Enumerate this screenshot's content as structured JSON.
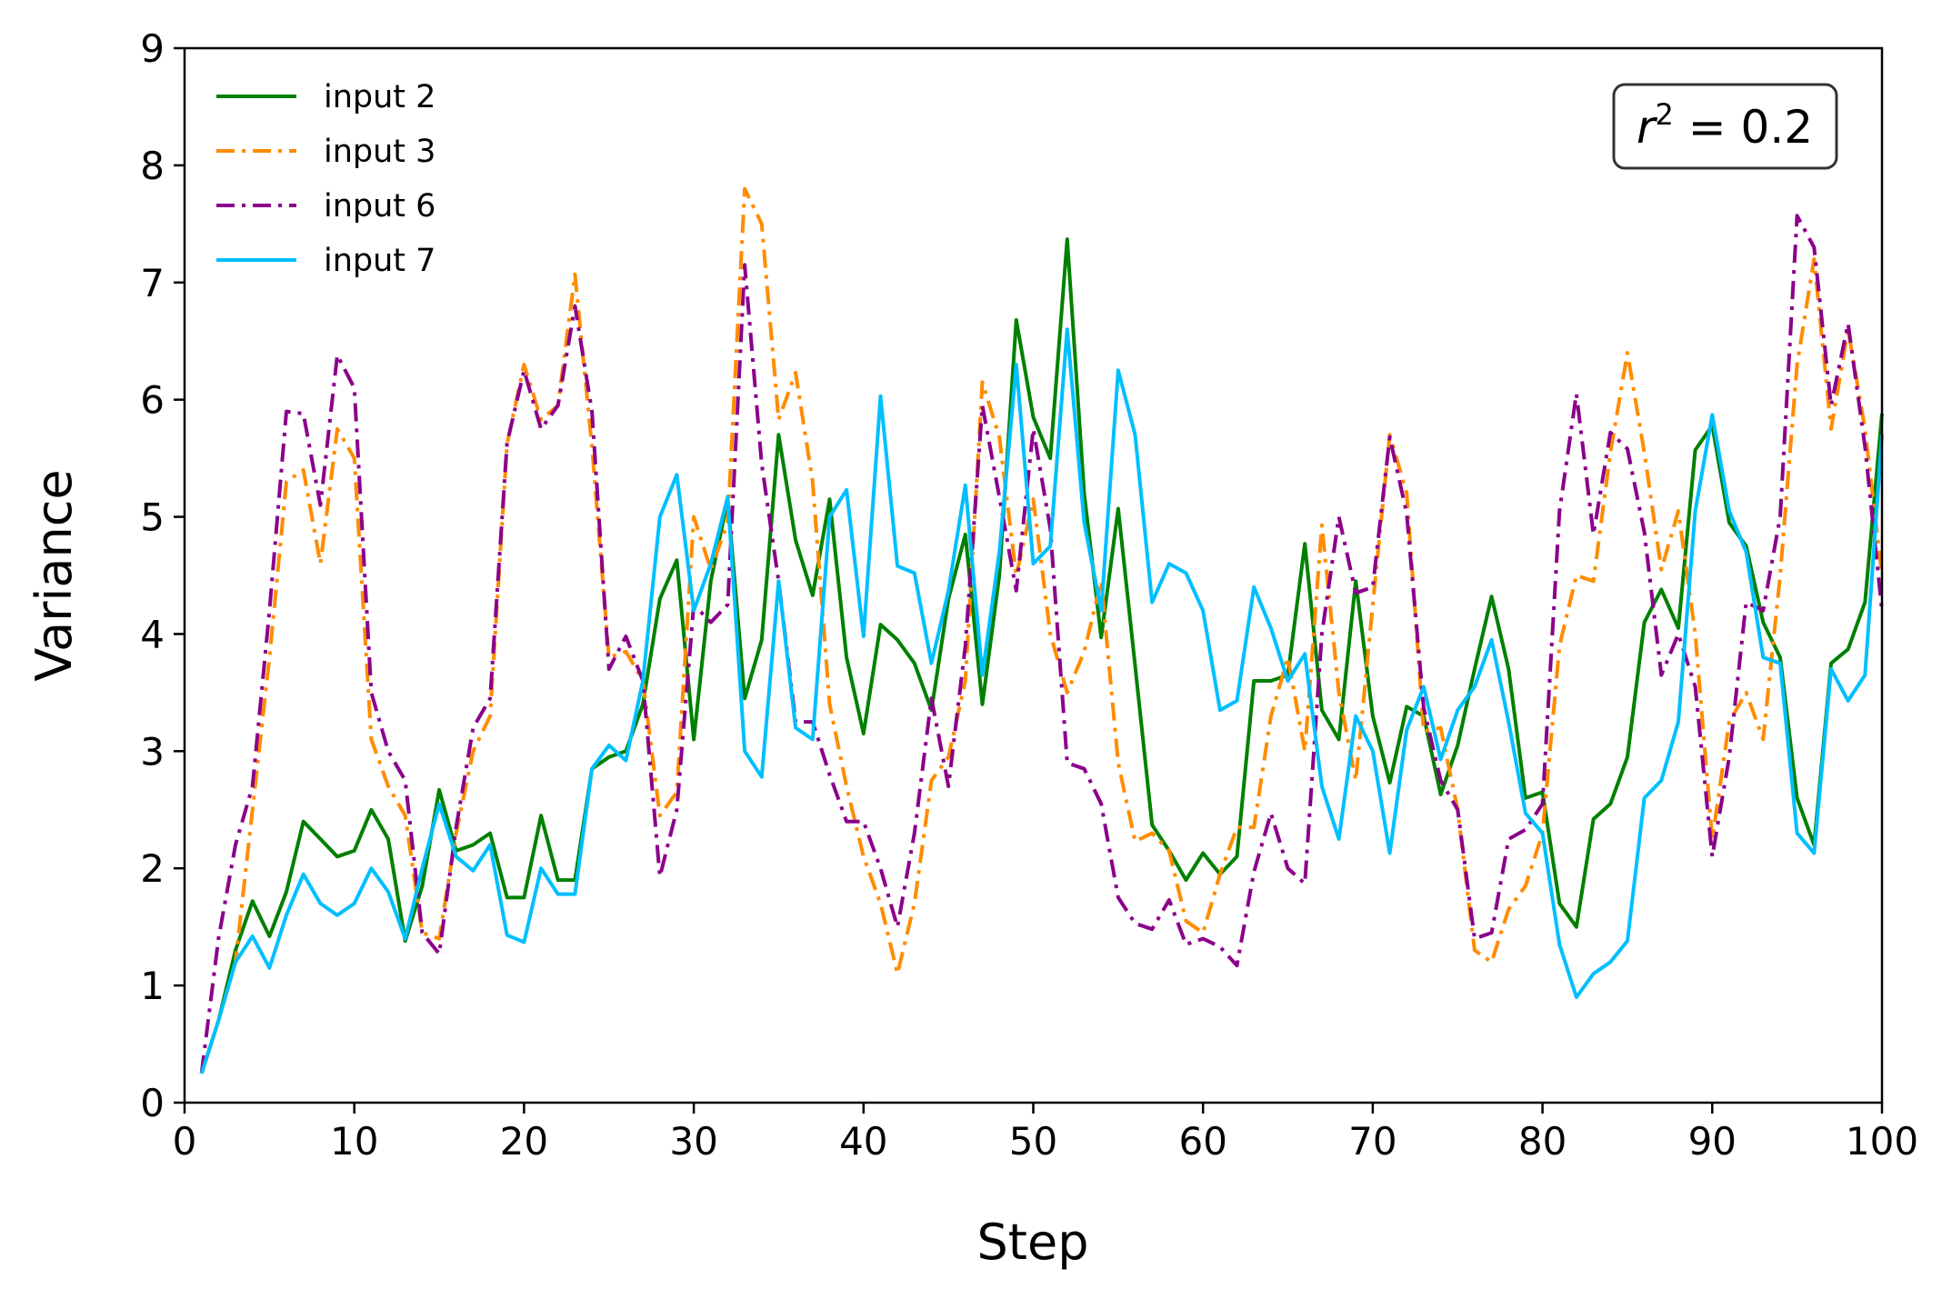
{
  "chart_data": {
    "type": "line",
    "xlabel": "Step",
    "ylabel": "Variance",
    "xlim": [
      0,
      100
    ],
    "ylim": [
      0,
      9
    ],
    "xticks": [
      "0",
      "10",
      "20",
      "30",
      "40",
      "50",
      "60",
      "70",
      "80",
      "90",
      "100"
    ],
    "yticks": [
      "0",
      "1",
      "2",
      "3",
      "4",
      "5",
      "6",
      "7",
      "8",
      "9"
    ],
    "grid": false,
    "legend_position": "top-left",
    "annotation": {
      "var": "r",
      "sup": "2",
      "rest": " = 0.2"
    },
    "x": [
      1,
      2,
      3,
      4,
      5,
      6,
      7,
      8,
      9,
      10,
      11,
      12,
      13,
      14,
      15,
      16,
      17,
      18,
      19,
      20,
      21,
      22,
      23,
      24,
      25,
      26,
      27,
      28,
      29,
      30,
      31,
      32,
      33,
      34,
      35,
      36,
      37,
      38,
      39,
      40,
      41,
      42,
      43,
      44,
      45,
      46,
      47,
      48,
      49,
      50,
      51,
      52,
      53,
      54,
      55,
      56,
      57,
      58,
      59,
      60,
      61,
      62,
      63,
      64,
      65,
      66,
      67,
      68,
      69,
      70,
      71,
      72,
      73,
      74,
      75,
      76,
      77,
      78,
      79,
      80,
      81,
      82,
      83,
      84,
      85,
      86,
      87,
      88,
      89,
      90,
      91,
      92,
      93,
      94,
      95,
      96,
      97,
      98,
      99,
      100
    ],
    "series": [
      {
        "name": "input 2",
        "color": "#008000",
        "style": "solid",
        "values": [
          0.25,
          0.7,
          1.3,
          1.72,
          1.42,
          1.8,
          2.4,
          2.25,
          2.1,
          2.15,
          2.5,
          2.25,
          1.38,
          1.85,
          2.67,
          2.15,
          2.2,
          2.3,
          1.75,
          1.75,
          2.45,
          1.9,
          1.9,
          2.85,
          2.95,
          3.0,
          3.4,
          4.3,
          4.63,
          3.1,
          4.45,
          5.15,
          3.45,
          3.95,
          5.7,
          4.8,
          4.33,
          5.15,
          3.8,
          3.15,
          4.08,
          3.95,
          3.75,
          3.35,
          4.3,
          4.85,
          3.4,
          4.5,
          6.68,
          5.85,
          5.5,
          7.37,
          5.2,
          3.97,
          5.07,
          3.73,
          2.37,
          2.15,
          1.9,
          2.13,
          1.95,
          2.1,
          3.6,
          3.6,
          3.65,
          4.77,
          3.35,
          3.1,
          4.45,
          3.3,
          2.73,
          3.38,
          3.3,
          2.63,
          3.05,
          3.7,
          4.32,
          3.7,
          2.6,
          2.65,
          1.7,
          1.5,
          2.42,
          2.55,
          2.95,
          4.1,
          4.38,
          4.05,
          5.57,
          5.78,
          4.95,
          4.75,
          4.1,
          3.8,
          2.6,
          2.2,
          3.75,
          3.87,
          4.27,
          5.88
        ]
      },
      {
        "name": "input 3",
        "color": "#ff8c00",
        "style": "dashdot",
        "values": [
          0.25,
          0.7,
          1.2,
          2.5,
          3.8,
          5.3,
          5.4,
          4.6,
          5.75,
          5.5,
          3.1,
          2.7,
          2.45,
          1.45,
          1.4,
          2.3,
          3.0,
          3.3,
          5.62,
          6.3,
          5.83,
          5.95,
          7.07,
          5.6,
          3.8,
          3.85,
          3.6,
          2.45,
          2.65,
          5.0,
          4.55,
          4.95,
          7.8,
          7.5,
          5.83,
          6.23,
          5.3,
          3.4,
          2.7,
          2.1,
          1.7,
          1.1,
          1.7,
          2.75,
          2.95,
          3.6,
          6.15,
          5.68,
          4.5,
          5.15,
          4.0,
          3.5,
          3.85,
          4.45,
          2.9,
          2.23,
          2.3,
          2.15,
          1.55,
          1.45,
          1.95,
          2.35,
          2.35,
          3.3,
          3.8,
          3.0,
          4.93,
          3.5,
          2.75,
          4.25,
          5.7,
          5.2,
          3.17,
          3.2,
          2.5,
          1.3,
          1.2,
          1.65,
          1.85,
          2.3,
          3.9,
          4.5,
          4.45,
          5.55,
          6.4,
          5.55,
          4.55,
          5.05,
          4.0,
          2.25,
          3.25,
          3.5,
          3.1,
          4.5,
          6.3,
          7.2,
          5.75,
          6.6,
          5.75,
          4.5
        ]
      },
      {
        "name": "input 6",
        "color": "#8b008b",
        "style": "dashdot",
        "values": [
          0.25,
          1.4,
          2.2,
          2.7,
          4.2,
          5.9,
          5.88,
          5.1,
          6.38,
          6.1,
          3.5,
          3.0,
          2.75,
          1.45,
          1.27,
          2.35,
          3.2,
          3.45,
          5.63,
          6.25,
          5.75,
          5.95,
          6.8,
          5.9,
          3.7,
          3.98,
          3.6,
          1.93,
          2.5,
          4.25,
          4.1,
          4.25,
          7.15,
          5.45,
          4.45,
          3.25,
          3.25,
          2.8,
          2.4,
          2.4,
          2.0,
          1.5,
          2.3,
          3.45,
          2.7,
          3.9,
          5.95,
          5.17,
          4.37,
          5.75,
          4.9,
          2.9,
          2.85,
          2.55,
          1.75,
          1.53,
          1.48,
          1.73,
          1.35,
          1.4,
          1.33,
          1.17,
          1.97,
          2.47,
          2.0,
          1.87,
          4.0,
          5.0,
          4.35,
          4.4,
          5.68,
          5.03,
          3.37,
          2.75,
          2.5,
          1.4,
          1.45,
          2.25,
          2.33,
          2.55,
          5.05,
          6.05,
          4.85,
          5.72,
          5.58,
          4.87,
          3.65,
          4.0,
          3.55,
          2.1,
          2.95,
          4.27,
          4.2,
          5.0,
          7.57,
          7.3,
          5.95,
          6.65,
          5.6,
          4.2
        ]
      },
      {
        "name": "input 7",
        "color": "#00bfff",
        "style": "solid",
        "values": [
          0.25,
          0.7,
          1.2,
          1.42,
          1.15,
          1.6,
          1.95,
          1.7,
          1.6,
          1.7,
          2.0,
          1.8,
          1.4,
          2.0,
          2.55,
          2.1,
          1.98,
          2.2,
          1.43,
          1.37,
          2.0,
          1.78,
          1.78,
          2.85,
          3.05,
          2.92,
          3.6,
          5.0,
          5.36,
          4.2,
          4.6,
          5.17,
          3.0,
          2.78,
          4.45,
          3.2,
          3.1,
          5.0,
          5.23,
          3.98,
          6.03,
          4.58,
          4.52,
          3.75,
          4.37,
          5.27,
          3.65,
          4.7,
          6.3,
          4.6,
          4.75,
          6.6,
          4.95,
          4.2,
          6.25,
          5.7,
          4.27,
          4.6,
          4.52,
          4.2,
          3.35,
          3.43,
          4.4,
          4.05,
          3.6,
          3.83,
          2.7,
          2.25,
          3.3,
          3.0,
          2.13,
          3.18,
          3.55,
          2.93,
          3.35,
          3.55,
          3.95,
          3.25,
          2.47,
          2.3,
          1.35,
          0.9,
          1.1,
          1.2,
          1.38,
          2.6,
          2.75,
          3.25,
          5.05,
          5.87,
          5.05,
          4.7,
          3.8,
          3.75,
          2.3,
          2.13,
          3.7,
          3.43,
          3.65,
          5.7
        ]
      }
    ]
  }
}
